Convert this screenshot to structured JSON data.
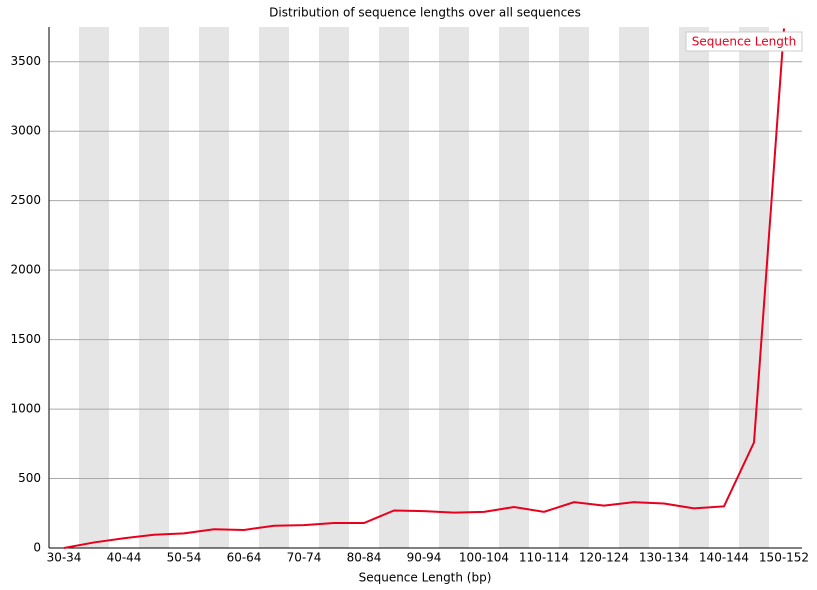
{
  "chart_data": {
    "type": "line",
    "title": "Distribution of sequence lengths over all sequences",
    "x_label": "Sequence Length (bp)",
    "categories": [
      "30-34",
      null,
      "40-44",
      null,
      "50-54",
      null,
      "60-64",
      null,
      "70-74",
      null,
      "80-84",
      null,
      "90-94",
      null,
      "100-104",
      null,
      "110-114",
      null,
      "120-124",
      null,
      "130-134",
      null,
      "140-144",
      null,
      "150-152"
    ],
    "series": [
      {
        "name": "Sequence Length",
        "color": "#e8001c",
        "values": [
          0,
          40,
          70,
          95,
          105,
          135,
          130,
          160,
          165,
          180,
          180,
          270,
          265,
          255,
          260,
          295,
          260,
          330,
          305,
          330,
          320,
          285,
          300,
          760,
          3740
        ]
      }
    ],
    "ylim": [
      0,
      3750
    ],
    "yticks": [
      0,
      500,
      1000,
      1500,
      2000,
      2500,
      3000,
      3500
    ],
    "grid": true,
    "legend": "top-right"
  }
}
